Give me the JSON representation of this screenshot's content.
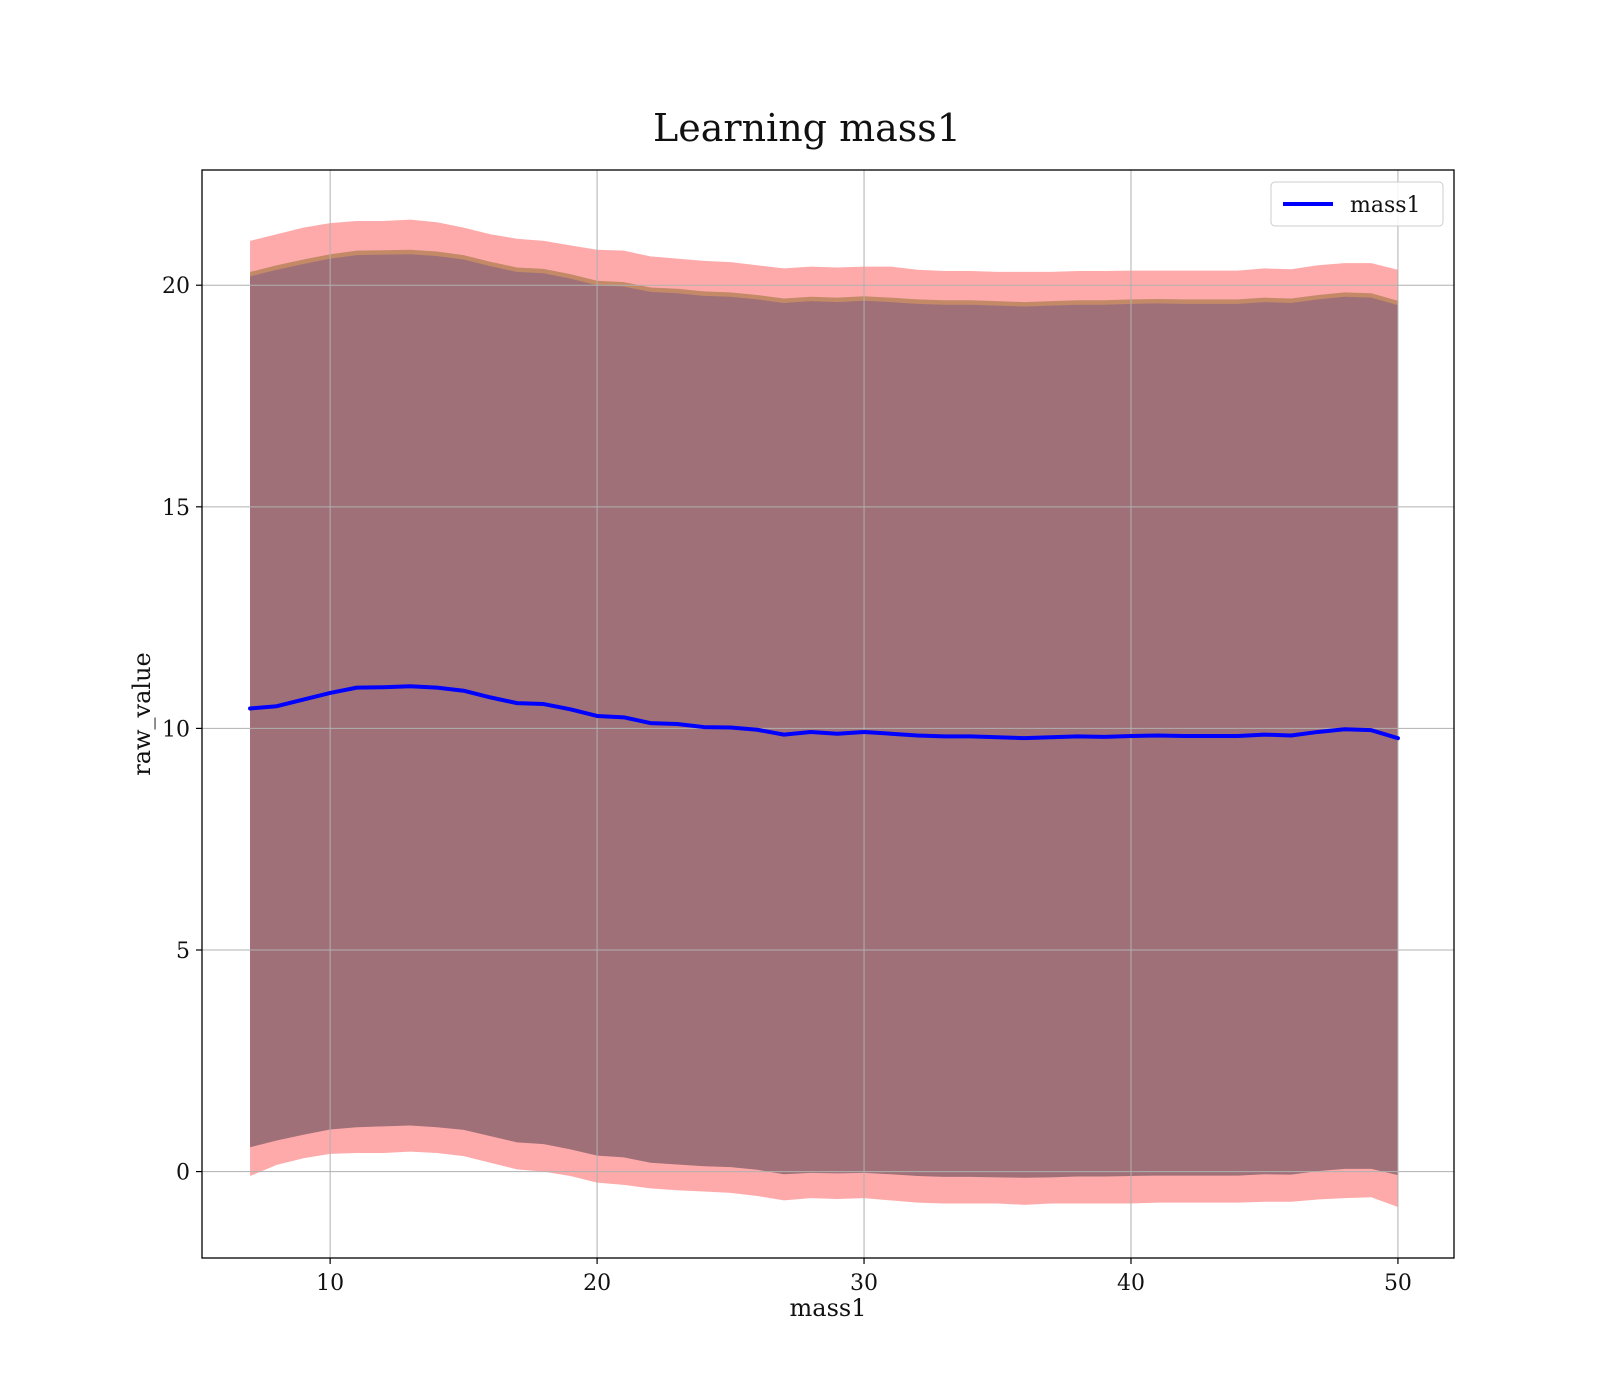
{
  "chart_data": {
    "type": "area",
    "title": "Learning mass1",
    "xlabel": "mass1",
    "ylabel": "raw_value",
    "xlim": [
      5.2,
      52.1
    ],
    "ylim": [
      -1.95,
      22.6
    ],
    "xticks": [
      10,
      20,
      30,
      40,
      50
    ],
    "yticks": [
      0,
      5,
      10,
      15,
      20
    ],
    "grid": true,
    "legend": {
      "placement": "top-right",
      "entries": [
        "mass1"
      ]
    },
    "colors": {
      "line": "#0000ff",
      "outer_band": "#ffaaaa",
      "middle_band": "#c48a68",
      "inner_band": "#a07078",
      "grid": "#b0b0b0"
    },
    "x": [
      7,
      8,
      9,
      10,
      11,
      12,
      13,
      14,
      15,
      16,
      17,
      18,
      19,
      20,
      21,
      22,
      23,
      24,
      25,
      26,
      27,
      28,
      29,
      30,
      31,
      32,
      33,
      34,
      35,
      36,
      37,
      38,
      39,
      40,
      41,
      42,
      43,
      44,
      45,
      46,
      47,
      48,
      49,
      50
    ],
    "series": [
      {
        "name": "mass1",
        "values": [
          10.45,
          10.5,
          10.65,
          10.8,
          10.92,
          10.93,
          10.95,
          10.92,
          10.85,
          10.7,
          10.57,
          10.55,
          10.43,
          10.28,
          10.25,
          10.12,
          10.1,
          10.03,
          10.02,
          9.97,
          9.86,
          9.92,
          9.88,
          9.92,
          9.88,
          9.84,
          9.82,
          9.82,
          9.8,
          9.78,
          9.8,
          9.82,
          9.81,
          9.83,
          9.84,
          9.83,
          9.83,
          9.83,
          9.86,
          9.84,
          9.92,
          9.98,
          9.96,
          9.78
        ]
      }
    ],
    "bands": [
      {
        "role": "outer",
        "lower": [
          -0.1,
          0.15,
          0.3,
          0.4,
          0.42,
          0.42,
          0.45,
          0.42,
          0.35,
          0.2,
          0.05,
          0.0,
          -0.1,
          -0.25,
          -0.3,
          -0.38,
          -0.42,
          -0.45,
          -0.48,
          -0.55,
          -0.65,
          -0.6,
          -0.62,
          -0.6,
          -0.65,
          -0.7,
          -0.72,
          -0.72,
          -0.72,
          -0.75,
          -0.72,
          -0.72,
          -0.72,
          -0.72,
          -0.7,
          -0.7,
          -0.7,
          -0.7,
          -0.68,
          -0.68,
          -0.63,
          -0.6,
          -0.58,
          -0.8
        ],
        "upper": [
          21.0,
          21.15,
          21.3,
          21.4,
          21.45,
          21.45,
          21.48,
          21.42,
          21.3,
          21.15,
          21.05,
          21.0,
          20.9,
          20.8,
          20.78,
          20.65,
          20.6,
          20.55,
          20.52,
          20.45,
          20.38,
          20.42,
          20.4,
          20.42,
          20.42,
          20.35,
          20.32,
          20.32,
          20.3,
          20.3,
          20.3,
          20.32,
          20.32,
          20.33,
          20.33,
          20.33,
          20.33,
          20.33,
          20.38,
          20.36,
          20.45,
          20.5,
          20.5,
          20.35
        ]
      },
      {
        "role": "middle",
        "lower": [
          0.6,
          0.75,
          0.88,
          1.0,
          1.06,
          1.08,
          1.1,
          1.06,
          1.0,
          0.86,
          0.72,
          0.68,
          0.55,
          0.42,
          0.38,
          0.26,
          0.22,
          0.18,
          0.16,
          0.1,
          0.0,
          0.03,
          0.02,
          0.03,
          0.0,
          -0.04,
          -0.06,
          -0.06,
          -0.07,
          -0.08,
          -0.07,
          -0.05,
          -0.05,
          -0.04,
          -0.03,
          -0.03,
          -0.03,
          -0.03,
          0.0,
          -0.01,
          0.07,
          0.12,
          0.12,
          -0.02
        ],
        "upper": [
          20.3,
          20.45,
          20.58,
          20.7,
          20.78,
          20.79,
          20.8,
          20.76,
          20.68,
          20.53,
          20.4,
          20.37,
          20.25,
          20.1,
          20.07,
          19.95,
          19.92,
          19.86,
          19.84,
          19.78,
          19.7,
          19.74,
          19.72,
          19.75,
          19.72,
          19.68,
          19.66,
          19.66,
          19.64,
          19.62,
          19.64,
          19.66,
          19.66,
          19.68,
          19.69,
          19.68,
          19.68,
          19.68,
          19.72,
          19.7,
          19.78,
          19.84,
          19.82,
          19.65
        ]
      },
      {
        "role": "inner",
        "lower": [
          0.55,
          0.7,
          0.83,
          0.95,
          1.0,
          1.02,
          1.04,
          1.0,
          0.94,
          0.8,
          0.66,
          0.62,
          0.5,
          0.36,
          0.32,
          0.2,
          0.16,
          0.12,
          0.1,
          0.04,
          -0.06,
          -0.03,
          -0.04,
          -0.03,
          -0.06,
          -0.1,
          -0.12,
          -0.12,
          -0.13,
          -0.14,
          -0.13,
          -0.11,
          -0.11,
          -0.1,
          -0.09,
          -0.09,
          -0.09,
          -0.09,
          -0.06,
          -0.07,
          0.01,
          0.06,
          0.06,
          -0.08
        ],
        "upper": [
          20.2,
          20.35,
          20.48,
          20.6,
          20.68,
          20.69,
          20.7,
          20.66,
          20.58,
          20.43,
          20.3,
          20.27,
          20.15,
          20.0,
          19.97,
          19.85,
          19.82,
          19.76,
          19.74,
          19.68,
          19.6,
          19.64,
          19.62,
          19.65,
          19.62,
          19.58,
          19.56,
          19.56,
          19.54,
          19.52,
          19.54,
          19.56,
          19.56,
          19.58,
          19.59,
          19.58,
          19.58,
          19.58,
          19.62,
          19.6,
          19.68,
          19.74,
          19.72,
          19.55
        ]
      }
    ]
  }
}
